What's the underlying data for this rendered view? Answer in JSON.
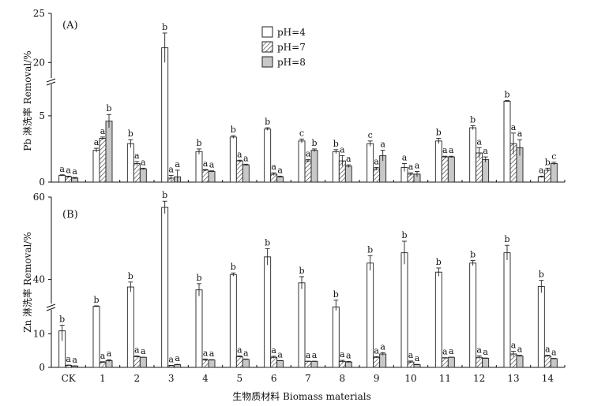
{
  "xlabel": "生物质材料 Biomass materials",
  "categories": [
    "CK",
    "1",
    "2",
    "3",
    "4",
    "5",
    "6",
    "7",
    "8",
    "9",
    "10",
    "11",
    "12",
    "13",
    "14"
  ],
  "colors": {
    "pH4": "#ffffff",
    "pH7": "#ffffff",
    "pH8": "#c8c8c8",
    "stroke": "#222222"
  },
  "chart_data": [
    {
      "type": "bar",
      "panel_label": "(A)",
      "ylabel": "Pb 淋洗率 Removal/%",
      "yaxis_break": true,
      "ticks": [
        "0",
        "5",
        "20",
        "25"
      ],
      "ylim": [
        0,
        25
      ],
      "legend_position": "top-center",
      "categories": [
        "CK",
        "1",
        "2",
        "3",
        "4",
        "5",
        "6",
        "7",
        "8",
        "9",
        "10",
        "11",
        "12",
        "13",
        "14"
      ],
      "series": [
        {
          "name": "pH=4",
          "pattern": "white",
          "values": [
            0.5,
            2.4,
            2.9,
            21.5,
            2.3,
            3.4,
            4.0,
            3.1,
            2.3,
            2.9,
            1.1,
            3.1,
            4.1,
            6.1,
            0.4
          ],
          "errors": [
            0.05,
            0.15,
            0.3,
            1.5,
            0.2,
            0.1,
            0.1,
            0.15,
            0.15,
            0.2,
            0.3,
            0.2,
            0.15,
            0.05,
            0.05
          ],
          "letters": [
            "a",
            "a",
            "b",
            "b",
            "b",
            "b",
            "b",
            "c",
            "b",
            "c",
            "a",
            "b",
            "b",
            "b",
            "a"
          ]
        },
        {
          "name": "pH=7",
          "pattern": "hatched",
          "values": [
            0.4,
            3.3,
            1.4,
            0.3,
            0.9,
            1.6,
            0.6,
            1.6,
            1.6,
            1.0,
            0.6,
            1.9,
            2.2,
            2.9,
            0.9
          ],
          "errors": [
            0.05,
            0.1,
            0.15,
            0.2,
            0.05,
            0.05,
            0.1,
            0.1,
            0.4,
            0.1,
            0.1,
            0.05,
            0.4,
            0.8,
            0.15
          ],
          "letters": [
            "a",
            "a",
            "a",
            "a",
            "a",
            "a",
            "a",
            "a",
            "a",
            "a",
            "a",
            "a",
            "a",
            "a",
            "b"
          ]
        },
        {
          "name": "pH=8",
          "pattern": "gray",
          "values": [
            0.3,
            4.6,
            1.0,
            0.4,
            0.8,
            1.3,
            0.4,
            2.4,
            1.2,
            2.0,
            0.6,
            1.9,
            1.7,
            2.6,
            1.4
          ],
          "errors": [
            0.05,
            0.5,
            0.05,
            0.5,
            0.05,
            0.05,
            0.05,
            0.1,
            0.1,
            0.4,
            0.2,
            0.05,
            0.2,
            0.6,
            0.1
          ],
          "letters": [
            "a",
            "b",
            "a",
            "a",
            "a",
            "a",
            "a",
            "b",
            "a",
            "a",
            "a",
            "a",
            "a",
            "a",
            "c"
          ]
        }
      ]
    },
    {
      "type": "bar",
      "panel_label": "(B)",
      "ylabel": "Zn 淋洗率 Removal/%",
      "yaxis_break": true,
      "ticks": [
        "0",
        "10",
        "40",
        "60"
      ],
      "ylim": [
        0,
        60
      ],
      "categories": [
        "CK",
        "1",
        "2",
        "3",
        "4",
        "5",
        "6",
        "7",
        "8",
        "9",
        "10",
        "11",
        "12",
        "13",
        "14"
      ],
      "series": [
        {
          "name": "pH=4",
          "pattern": "white",
          "values": [
            10.9,
            32.0,
            38.2,
            57.5,
            37.5,
            41.2,
            45.5,
            39.2,
            31.5,
            44.0,
            46.5,
            41.8,
            44.0,
            46.5,
            38.3
          ],
          "errors": [
            3.0,
            0.5,
            1.2,
            1.5,
            1.5,
            0.4,
            2.0,
            1.5,
            3.5,
            1.8,
            2.8,
            1.0,
            0.6,
            1.8,
            1.5
          ],
          "letters": [
            "b",
            "b",
            "b",
            "b",
            "b",
            "b",
            "b",
            "b",
            "b",
            "b",
            "b",
            "b",
            "b",
            "b",
            "b"
          ]
        },
        {
          "name": "pH=7",
          "pattern": "hatched",
          "values": [
            0.6,
            1.5,
            3.2,
            0.5,
            2.2,
            3.2,
            3.0,
            1.8,
            1.8,
            3.0,
            1.6,
            2.8,
            3.0,
            4.0,
            3.4
          ],
          "errors": [
            0.1,
            0.2,
            0.2,
            0.1,
            0.3,
            0.2,
            0.3,
            0.05,
            0.3,
            0.2,
            0.3,
            0.1,
            0.4,
            0.8,
            0.2
          ],
          "letters": [
            "a",
            "a",
            "a",
            "a",
            "a",
            "a",
            "a",
            "a",
            "a",
            "a",
            "a",
            "a",
            "a",
            "a",
            "a"
          ]
        },
        {
          "name": "pH=8",
          "pattern": "gray",
          "values": [
            0.4,
            2.0,
            3.0,
            0.8,
            2.2,
            2.4,
            2.0,
            1.8,
            1.6,
            4.0,
            0.8,
            3.0,
            2.7,
            3.4,
            2.6
          ],
          "errors": [
            0.05,
            0.3,
            0.05,
            0.1,
            0.1,
            0.1,
            0.05,
            0.05,
            0.2,
            0.4,
            0.1,
            0.05,
            0.1,
            0.2,
            0.1
          ],
          "letters": [
            "a",
            "a",
            "a",
            "a",
            "a",
            "a",
            "a",
            "a",
            "a",
            "a",
            "a",
            "a",
            "a",
            "a",
            "a"
          ]
        }
      ]
    }
  ]
}
